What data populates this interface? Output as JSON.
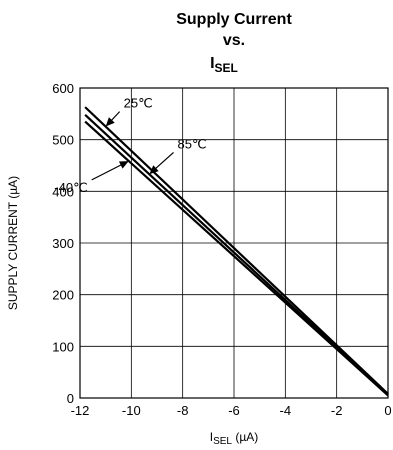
{
  "chart_data": {
    "type": "line",
    "title_lines": [
      "Supply Current",
      "vs."
    ],
    "title_symbol": "I",
    "title_subscript": "SEL",
    "xlabel_symbol": "I",
    "xlabel_subscript": "SEL",
    "xlabel_unit": " (µA)",
    "ylabel": "SUPPLY CURRENT (µA)",
    "xlim": [
      -12,
      0
    ],
    "ylim": [
      0,
      600
    ],
    "xticks": [
      -12,
      -10,
      -8,
      -6,
      -4,
      -2,
      0
    ],
    "yticks": [
      0,
      100,
      200,
      300,
      400,
      500,
      600
    ],
    "grid": true,
    "series": [
      {
        "name": "25℃",
        "x": [
          -11.8,
          0
        ],
        "y": [
          563,
          8
        ]
      },
      {
        "name": "85℃",
        "x": [
          -11.8,
          0
        ],
        "y": [
          548,
          6
        ]
      },
      {
        "name": "-40℃",
        "x": [
          -11.8,
          0
        ],
        "y": [
          535,
          5
        ]
      }
    ],
    "annotations": [
      {
        "text": "25℃",
        "series": "25℃",
        "arrow_x": -11.0,
        "text_x": -10.3,
        "text_y": 562
      },
      {
        "text": "85℃",
        "series": "85℃",
        "arrow_x": -9.3,
        "text_x": -8.2,
        "text_y": 483
      },
      {
        "text": "-40℃",
        "series": "-40℃",
        "arrow_x": -10.1,
        "text_x": -11.7,
        "text_y": 399
      }
    ],
    "line_color": "#000000",
    "grid_color": "#000000"
  }
}
